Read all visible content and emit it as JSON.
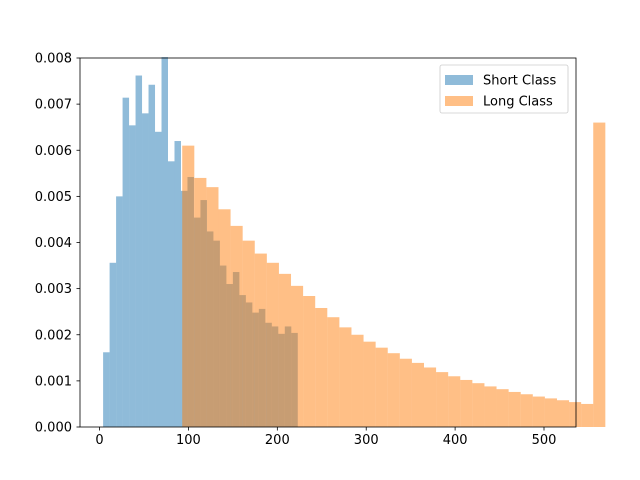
{
  "chart_data": {
    "type": "histogram",
    "title": "",
    "xlabel": "",
    "ylabel": "",
    "xlim": [
      -22,
      536
    ],
    "ylim": [
      0,
      0.008
    ],
    "x_ticks": [
      0,
      100,
      200,
      300,
      400,
      500
    ],
    "y_ticks": [
      0.0,
      0.001,
      0.002,
      0.003,
      0.004,
      0.005,
      0.006,
      0.007,
      0.008
    ],
    "x_tick_labels": [
      "0",
      "100",
      "200",
      "300",
      "400",
      "500"
    ],
    "y_tick_labels": [
      "0.000",
      "0.001",
      "0.002",
      "0.003",
      "0.004",
      "0.005",
      "0.006",
      "0.007",
      "0.008"
    ],
    "grid": false,
    "legend_position": "top-right",
    "series": [
      {
        "name": "Short Class",
        "color": "#1f77b4",
        "opacity": 0.5,
        "bin_start": 4,
        "bin_width": 7.3,
        "values": [
          0.00162,
          0.00356,
          0.005,
          0.00714,
          0.00654,
          0.00762,
          0.0068,
          0.00742,
          0.0064,
          0.00802,
          0.00576,
          0.0062,
          0.00512,
          0.00542,
          0.00454,
          0.00492,
          0.00424,
          0.00404,
          0.0035,
          0.0031,
          0.00336,
          0.00286,
          0.0027,
          0.00248,
          0.00256,
          0.00226,
          0.00218,
          0.00202,
          0.00218,
          0.00204
        ]
      },
      {
        "name": "Long Class",
        "color": "#ff7f0e",
        "opacity": 0.5,
        "bin_start": 93,
        "bin_width": 13.6,
        "values": [
          0.0061,
          0.0054,
          0.0052,
          0.00472,
          0.00436,
          0.00404,
          0.00376,
          0.00356,
          0.00332,
          0.00306,
          0.00284,
          0.00258,
          0.00238,
          0.00216,
          0.002,
          0.00185,
          0.00172,
          0.0016,
          0.00148,
          0.00139,
          0.00129,
          0.00119,
          0.0011,
          0.00102,
          0.00095,
          0.00088,
          0.00082,
          0.00076,
          0.00071,
          0.00066,
          0.00062,
          0.00058,
          0.00054,
          0.0005,
          0.0066
        ]
      }
    ]
  }
}
